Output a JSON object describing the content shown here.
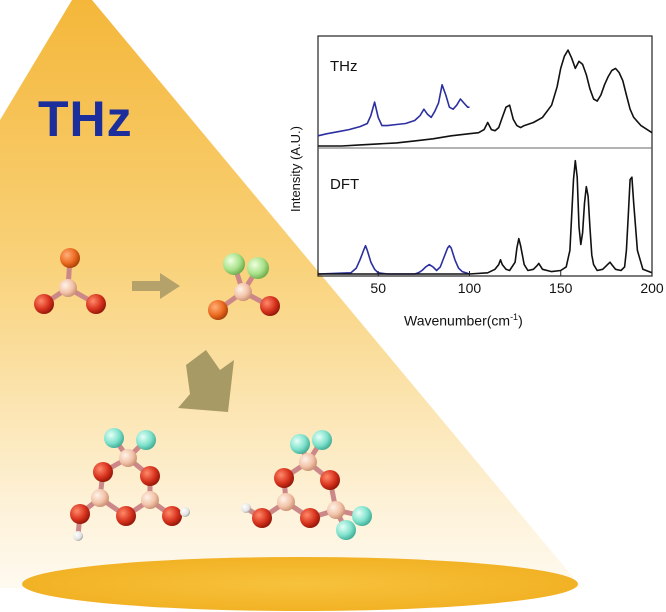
{
  "big_label": "THz",
  "chart_data": {
    "type": "line",
    "xlabel": "Wavenumber(cm",
    "xlabel_sup": "-1",
    "xlabel_close": ")",
    "ylabel": "Intensity (A.U.)",
    "xlim": [
      17,
      200
    ],
    "xticks": [
      "50",
      "100",
      "150",
      "200"
    ],
    "panels": [
      {
        "label": "THz",
        "series": [
          {
            "color": "#2b2fa0",
            "x": [
              17,
              22,
              28,
              34,
              40,
              44,
              46,
              48,
              50,
              52,
              55,
              60,
              65,
              70,
              73,
              75,
              77,
              79,
              81,
              83,
              85,
              87,
              89,
              91,
              93,
              95,
              97,
              99,
              100
            ],
            "y": [
              0.12,
              0.14,
              0.16,
              0.18,
              0.21,
              0.24,
              0.32,
              0.45,
              0.3,
              0.22,
              0.22,
              0.23,
              0.24,
              0.27,
              0.32,
              0.38,
              0.33,
              0.3,
              0.36,
              0.44,
              0.62,
              0.52,
              0.4,
              0.38,
              0.42,
              0.48,
              0.44,
              0.4,
              0.4
            ]
          },
          {
            "color": "#111111",
            "x": [
              17,
              30,
              40,
              50,
              60,
              70,
              80,
              90,
              100,
              105,
              108,
              110,
              112,
              114,
              116,
              118,
              120,
              122,
              124,
              126,
              128,
              130,
              135,
              140,
              145,
              148,
              150,
              152,
              154,
              156,
              158,
              160,
              162,
              164,
              166,
              168,
              170,
              172,
              174,
              176,
              178,
              180,
              182,
              184,
              186,
              188,
              190,
              194,
              200
            ],
            "y": [
              0.02,
              0.02,
              0.03,
              0.04,
              0.05,
              0.07,
              0.09,
              0.12,
              0.14,
              0.15,
              0.18,
              0.25,
              0.18,
              0.17,
              0.2,
              0.3,
              0.4,
              0.42,
              0.28,
              0.22,
              0.2,
              0.22,
              0.25,
              0.3,
              0.42,
              0.6,
              0.78,
              0.9,
              0.96,
              0.88,
              0.78,
              0.85,
              0.82,
              0.72,
              0.58,
              0.48,
              0.46,
              0.52,
              0.62,
              0.7,
              0.76,
              0.78,
              0.74,
              0.66,
              0.52,
              0.38,
              0.3,
              0.22,
              0.15
            ]
          }
        ]
      },
      {
        "label": "DFT",
        "series": [
          {
            "color": "#2b2fa0",
            "x": [
              17,
              35,
              38,
              40,
              42,
              43,
              44,
              46,
              48,
              50,
              55,
              60,
              65,
              70,
              72,
              74,
              76,
              78,
              80,
              82,
              84,
              86,
              88,
              89,
              90,
              92,
              94,
              96,
              98,
              100
            ],
            "y": [
              0.0,
              0.01,
              0.05,
              0.12,
              0.2,
              0.24,
              0.2,
              0.1,
              0.04,
              0.01,
              0.0,
              0.0,
              0.0,
              0.0,
              0.01,
              0.03,
              0.06,
              0.08,
              0.06,
              0.03,
              0.06,
              0.14,
              0.22,
              0.24,
              0.22,
              0.12,
              0.05,
              0.02,
              0.01,
              0.0
            ]
          },
          {
            "color": "#111111",
            "x": [
              17,
              100,
              110,
              114,
              116,
              117,
              118,
              120,
              122,
              125,
              126,
              127,
              128,
              130,
              132,
              135,
              137,
              138,
              140,
              145,
              150,
              153,
              155,
              156,
              157,
              158,
              159,
              160,
              161,
              162,
              163,
              164,
              165,
              166,
              167,
              168,
              170,
              173,
              175,
              177,
              178,
              180,
              183,
              185,
              186,
              187,
              188,
              189,
              190,
              192,
              195,
              200
            ],
            "y": [
              0.0,
              0.0,
              0.01,
              0.04,
              0.08,
              0.12,
              0.08,
              0.04,
              0.03,
              0.1,
              0.22,
              0.3,
              0.24,
              0.08,
              0.03,
              0.04,
              0.07,
              0.09,
              0.04,
              0.02,
              0.03,
              0.06,
              0.2,
              0.5,
              0.8,
              0.96,
              0.82,
              0.4,
              0.25,
              0.35,
              0.6,
              0.74,
              0.66,
              0.4,
              0.16,
              0.08,
              0.03,
              0.04,
              0.07,
              0.1,
              0.08,
              0.04,
              0.03,
              0.06,
              0.2,
              0.5,
              0.8,
              0.82,
              0.6,
              0.2,
              0.04,
              0.01
            ]
          }
        ]
      }
    ]
  }
}
